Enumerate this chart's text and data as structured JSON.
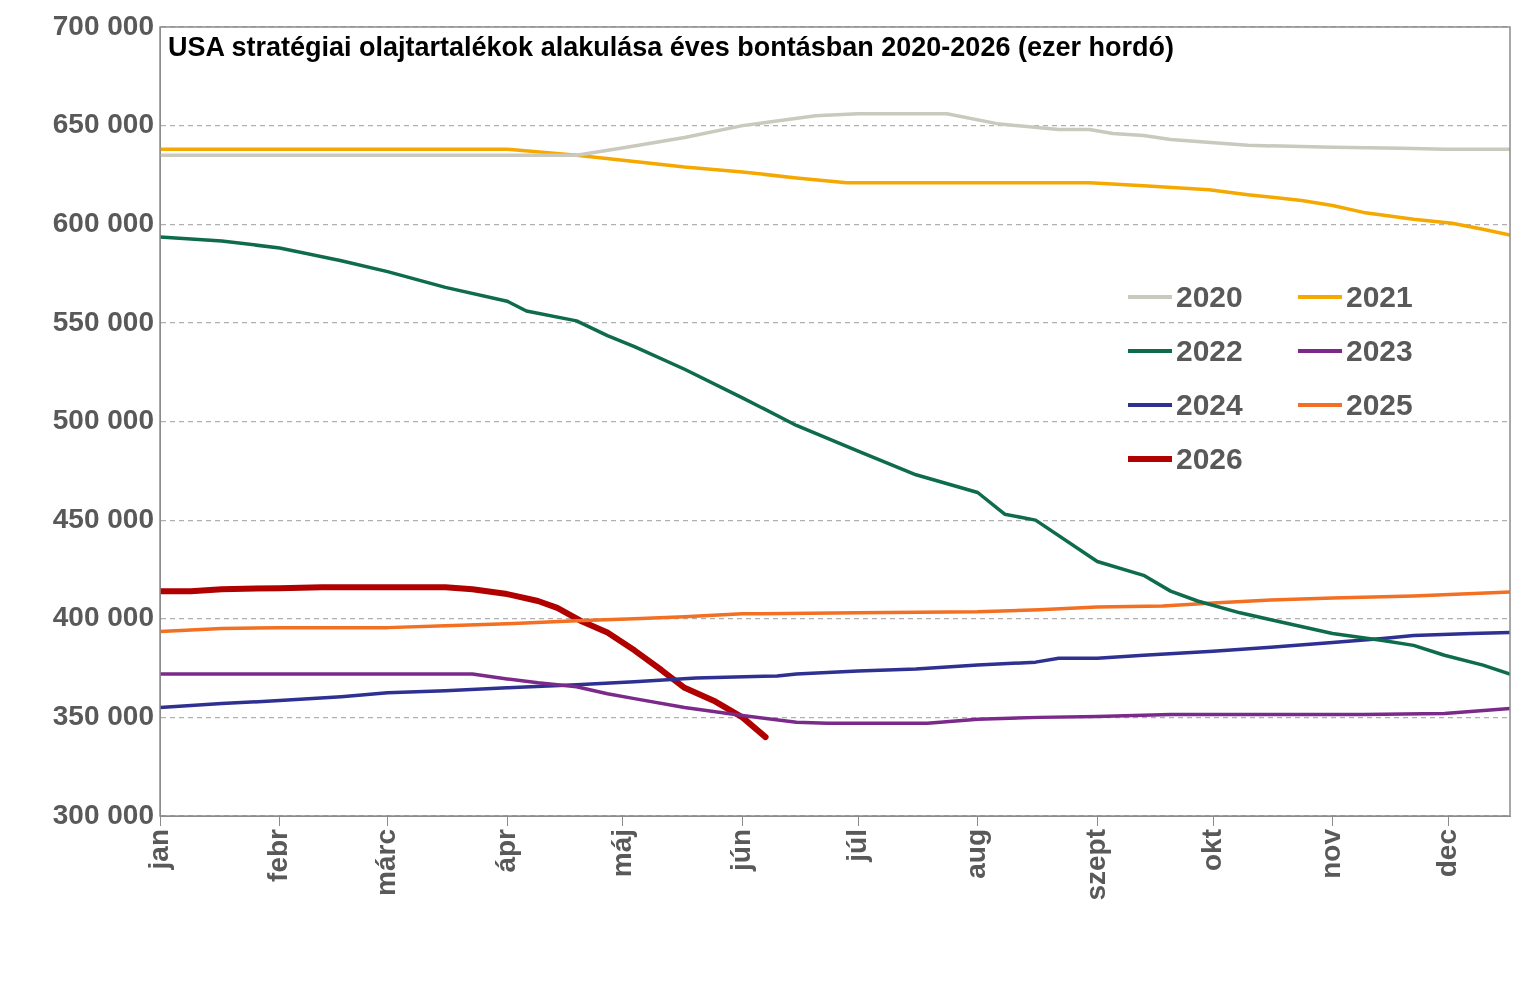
{
  "chart_data": {
    "type": "line",
    "title": "USA stratégiai olajtartalékok alakulása éves bontásban 2020-2026 (ezer hordó)",
    "xlim": [
      "--01-01",
      "--12-17"
    ],
    "xticks": [
      {
        "value": "--01-01",
        "label": "jan"
      },
      {
        "value": "--02-01",
        "label": "febr"
      },
      {
        "value": "--03-01",
        "label": "márc"
      },
      {
        "value": "--04-01",
        "label": "ápr"
      },
      {
        "value": "--05-01",
        "label": "máj"
      },
      {
        "value": "--06-01",
        "label": "jún"
      },
      {
        "value": "--07-01",
        "label": "júl"
      },
      {
        "value": "--08-01",
        "label": "aug"
      },
      {
        "value": "--09-01",
        "label": "szept"
      },
      {
        "value": "--10-01",
        "label": "okt"
      },
      {
        "value": "--11-01",
        "label": "nov"
      },
      {
        "value": "--12-01",
        "label": "dec"
      }
    ],
    "ylim": [
      300000,
      700000
    ],
    "yticks": [
      {
        "value": 300000,
        "label": "300 000"
      },
      {
        "value": 350000,
        "label": "350 000"
      },
      {
        "value": 400000,
        "label": "400 000"
      },
      {
        "value": 450000,
        "label": "450 000"
      },
      {
        "value": 500000,
        "label": "500 000"
      },
      {
        "value": 550000,
        "label": "550 000"
      },
      {
        "value": 600000,
        "label": "600 000"
      },
      {
        "value": 650000,
        "label": "650 000"
      },
      {
        "value": 700000,
        "label": "700 000"
      }
    ],
    "grid": "y",
    "legend": "right",
    "series": [
      {
        "name": "2020",
        "color": "#c9c9bd",
        "x": [
          "--01-01",
          "--04-19",
          "--05-02",
          "--05-17",
          "--06-01",
          "--06-20",
          "--07-01",
          "--07-24",
          "--08-06",
          "--08-22",
          "--08-30",
          "--09-05",
          "--09-13",
          "--09-20",
          "--10-10",
          "--11-01",
          "--11-19",
          "--11-30",
          "--12-17"
        ],
        "values": [
          635000,
          635000,
          639000,
          644000,
          650000,
          655000,
          656000,
          656000,
          651000,
          648000,
          648000,
          646000,
          645000,
          643000,
          640000,
          639000,
          638500,
          638000,
          638000
        ]
      },
      {
        "name": "2021",
        "color": "#f5a800",
        "x": [
          "--01-01",
          "--04-01",
          "--04-19",
          "--05-01",
          "--05-17",
          "--06-01",
          "--06-15",
          "--06-28",
          "--08-30",
          "--09-13",
          "--09-30",
          "--10-10",
          "--10-24",
          "--11-01",
          "--11-09",
          "--11-22",
          "--12-02",
          "--12-10",
          "--12-17"
        ],
        "values": [
          638000,
          638000,
          635000,
          632500,
          629000,
          626500,
          623500,
          621000,
          621000,
          619500,
          617500,
          615000,
          612000,
          609500,
          606000,
          602500,
          600500,
          597500,
          594500
        ]
      },
      {
        "name": "2022",
        "color": "#0e6b4e",
        "x": [
          "--01-01",
          "--01-17",
          "--02-01",
          "--02-17",
          "--03-01",
          "--03-16",
          "--04-01",
          "--04-06",
          "--04-19",
          "--04-27",
          "--05-04",
          "--05-17",
          "--06-01",
          "--06-15",
          "--07-01",
          "--07-16",
          "--08-01",
          "--08-08",
          "--08-16",
          "--09-01",
          "--09-13",
          "--09-20",
          "--09-27",
          "--10-08",
          "--10-16",
          "--11-01",
          "--11-14",
          "--11-22",
          "--11-30",
          "--12-10",
          "--12-17"
        ],
        "values": [
          593500,
          591500,
          588000,
          581500,
          576000,
          568000,
          561000,
          556000,
          551000,
          543500,
          538000,
          526500,
          512000,
          498000,
          485000,
          473000,
          464000,
          453000,
          450000,
          429000,
          422000,
          414000,
          409000,
          403000,
          399500,
          392500,
          389000,
          386500,
          381500,
          376500,
          372000
        ]
      },
      {
        "name": "2023",
        "color": "#7b2a8a",
        "x": [
          "--01-01",
          "--03-23",
          "--04-01",
          "--04-09",
          "--04-19",
          "--04-27",
          "--05-04",
          "--05-17",
          "--06-01",
          "--06-15",
          "--06-23",
          "--07-19",
          "--08-01",
          "--08-17",
          "--09-01",
          "--09-20",
          "--11-09",
          "--11-30",
          "--12-17"
        ],
        "values": [
          372000,
          372000,
          369500,
          367500,
          365500,
          362000,
          359500,
          355000,
          351000,
          347500,
          347000,
          347000,
          349000,
          350000,
          350500,
          351500,
          351500,
          352000,
          354500
        ]
      },
      {
        "name": "2024",
        "color": "#2e3092",
        "x": [
          "--01-01",
          "--01-17",
          "--02-01",
          "--02-17",
          "--03-01",
          "--03-16",
          "--04-01",
          "--04-19",
          "--05-04",
          "--05-20",
          "--06-10",
          "--06-15",
          "--07-01",
          "--07-16",
          "--08-01",
          "--08-16",
          "--08-22",
          "--09-01",
          "--09-13",
          "--10-01",
          "--10-16",
          "--11-01",
          "--11-14",
          "--11-22",
          "--12-07",
          "--12-17"
        ],
        "values": [
          355000,
          357000,
          358500,
          360500,
          362500,
          363500,
          365000,
          366500,
          368000,
          370000,
          371000,
          372000,
          373500,
          374500,
          376500,
          378000,
          380000,
          380000,
          381500,
          383500,
          385500,
          388000,
          390000,
          391500,
          392500,
          393000
        ]
      },
      {
        "name": "2025",
        "color": "#f36f21",
        "x": [
          "--01-01",
          "--01-17",
          "--02-01",
          "--03-01",
          "--03-16",
          "--04-01",
          "--04-19",
          "--05-04",
          "--05-17",
          "--06-01",
          "--07-01",
          "--08-01",
          "--08-17",
          "--09-01",
          "--09-18",
          "--10-01",
          "--10-16",
          "--11-01",
          "--11-22",
          "--12-17"
        ],
        "values": [
          393500,
          395000,
          395500,
          395500,
          396500,
          397500,
          399000,
          400000,
          401000,
          402500,
          403000,
          403500,
          404500,
          406000,
          406500,
          408000,
          409500,
          410500,
          411500,
          413500
        ]
      },
      {
        "name": "2026",
        "color": "#b00000",
        "x": [
          "--01-01",
          "--01-09",
          "--01-17",
          "--02-01",
          "--02-12",
          "--03-16",
          "--03-23",
          "--04-01",
          "--04-09",
          "--04-14",
          "--04-20",
          "--04-27",
          "--05-04",
          "--05-11",
          "--05-17",
          "--05-25",
          "--06-01",
          "--06-07"
        ],
        "values": [
          414000,
          414000,
          415000,
          415500,
          416000,
          416000,
          415000,
          412500,
          409000,
          405500,
          399000,
          393000,
          384000,
          374000,
          365000,
          358000,
          350000,
          340000
        ]
      }
    ]
  }
}
